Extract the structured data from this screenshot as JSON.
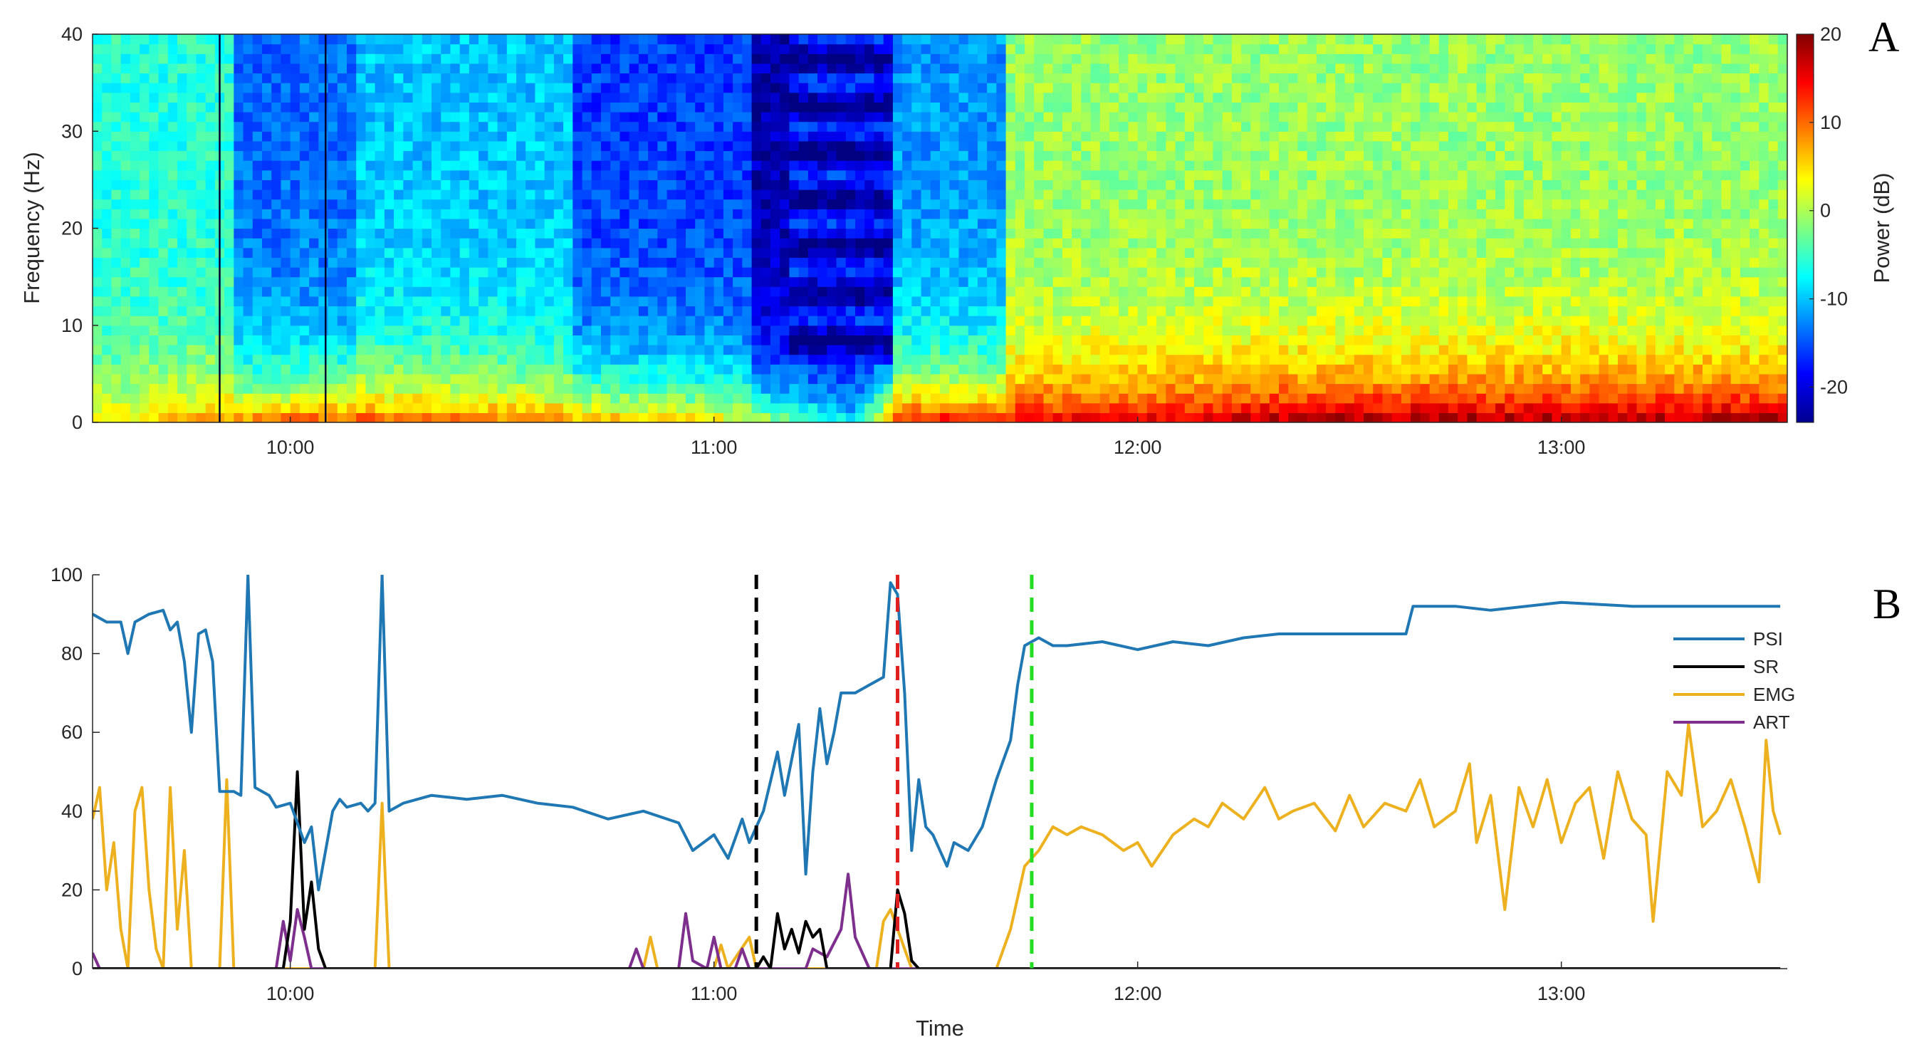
{
  "figure": {
    "panel_a_label": "A",
    "panel_b_label": "B",
    "x_tick_labels": [
      "10:00",
      "11:00",
      "12:00",
      "13:00"
    ]
  },
  "chart_data": [
    {
      "type": "heatmap",
      "panel": "A",
      "ylabel": "Frequency (Hz)",
      "ylim": [
        0,
        40
      ],
      "y_ticks": [
        0,
        10,
        20,
        30,
        40
      ],
      "xlim": [
        "09:32",
        "13:32"
      ],
      "x_ticks": [
        "10:00",
        "11:00",
        "12:00",
        "13:00"
      ],
      "colorbar": {
        "label": "Power (dB)",
        "range": [
          -24,
          20
        ],
        "ticks": [
          -20,
          -10,
          0,
          10,
          20
        ],
        "colormap": "jet",
        "colors": [
          "#00008f",
          "#0000ff",
          "#00ffff",
          "#ffff00",
          "#ff0000",
          "#800000"
        ]
      },
      "description_of_values": {
        "low_freq_0_5Hz_dB": [
          {
            "t": "09:35",
            "v": 4
          },
          {
            "t": "09:50",
            "v": 8
          },
          {
            "t": "10:05",
            "v": 12
          },
          {
            "t": "10:30",
            "v": 10
          },
          {
            "t": "11:00",
            "v": 5
          },
          {
            "t": "11:20",
            "v": -8
          },
          {
            "t": "11:26",
            "v": 14
          },
          {
            "t": "12:00",
            "v": 16
          },
          {
            "t": "12:25",
            "v": 19
          },
          {
            "t": "13:00",
            "v": 19
          },
          {
            "t": "13:30",
            "v": 19
          }
        ]
      },
      "vertical_lines": [
        "09:50",
        "10:05"
      ]
    },
    {
      "type": "line",
      "panel": "B",
      "xlabel": "Time",
      "ylabel": "",
      "ylim": [
        0,
        100
      ],
      "y_ticks": [
        0,
        20,
        40,
        60,
        80,
        100
      ],
      "xlim": [
        "09:32",
        "13:32"
      ],
      "x_ticks": [
        "10:00",
        "11:00",
        "12:00",
        "13:00"
      ],
      "legend": {
        "placement": "right",
        "entries": [
          "PSI",
          "SR",
          "EMG",
          "ART"
        ]
      },
      "event_markers": [
        {
          "time": "11:06",
          "color": "#000000",
          "style": "dashed"
        },
        {
          "time": "11:26",
          "color": "#e02020",
          "style": "dashed"
        },
        {
          "time": "11:45",
          "color": "#22dd22",
          "style": "dashed"
        }
      ],
      "series": [
        {
          "name": "PSI",
          "color": "#1f77b4",
          "points": [
            [
              "09:32",
              90
            ],
            [
              "09:34",
              88
            ],
            [
              "09:36",
              88
            ],
            [
              "09:37",
              80
            ],
            [
              "09:38",
              88
            ],
            [
              "09:40",
              90
            ],
            [
              "09:42",
              91
            ],
            [
              "09:43",
              86
            ],
            [
              "09:44",
              88
            ],
            [
              "09:45",
              78
            ],
            [
              "09:46",
              60
            ],
            [
              "09:47",
              85
            ],
            [
              "09:48",
              86
            ],
            [
              "09:49",
              78
            ],
            [
              "09:50",
              45
            ],
            [
              "09:52",
              45
            ],
            [
              "09:53",
              44
            ],
            [
              "09:54",
              100
            ],
            [
              "09:55",
              46
            ],
            [
              "09:57",
              44
            ],
            [
              "09:58",
              41
            ],
            [
              "10:00",
              42
            ],
            [
              "10:02",
              32
            ],
            [
              "10:03",
              36
            ],
            [
              "10:04",
              20
            ],
            [
              "10:05",
              30
            ],
            [
              "10:06",
              40
            ],
            [
              "10:07",
              43
            ],
            [
              "10:08",
              41
            ],
            [
              "10:10",
              42
            ],
            [
              "10:11",
              40
            ],
            [
              "10:12",
              42
            ],
            [
              "10:13",
              100
            ],
            [
              "10:14",
              40
            ],
            [
              "10:16",
              42
            ],
            [
              "10:20",
              44
            ],
            [
              "10:25",
              43
            ],
            [
              "10:30",
              44
            ],
            [
              "10:35",
              42
            ],
            [
              "10:40",
              41
            ],
            [
              "10:45",
              38
            ],
            [
              "10:50",
              40
            ],
            [
              "10:55",
              37
            ],
            [
              "10:57",
              30
            ],
            [
              "11:00",
              34
            ],
            [
              "11:02",
              28
            ],
            [
              "11:04",
              38
            ],
            [
              "11:05",
              32
            ],
            [
              "11:07",
              40
            ],
            [
              "11:09",
              55
            ],
            [
              "11:10",
              44
            ],
            [
              "11:12",
              62
            ],
            [
              "11:13",
              24
            ],
            [
              "11:14",
              50
            ],
            [
              "11:15",
              66
            ],
            [
              "11:16",
              52
            ],
            [
              "11:17",
              60
            ],
            [
              "11:18",
              70
            ],
            [
              "11:20",
              70
            ],
            [
              "11:22",
              72
            ],
            [
              "11:24",
              74
            ],
            [
              "11:25",
              98
            ],
            [
              "11:26",
              95
            ],
            [
              "11:27",
              70
            ],
            [
              "11:28",
              30
            ],
            [
              "11:29",
              48
            ],
            [
              "11:30",
              36
            ],
            [
              "11:31",
              34
            ],
            [
              "11:32",
              30
            ],
            [
              "11:33",
              26
            ],
            [
              "11:34",
              32
            ],
            [
              "11:36",
              30
            ],
            [
              "11:38",
              36
            ],
            [
              "11:40",
              48
            ],
            [
              "11:42",
              58
            ],
            [
              "11:43",
              72
            ],
            [
              "11:44",
              82
            ],
            [
              "11:46",
              84
            ],
            [
              "11:48",
              82
            ],
            [
              "11:50",
              82
            ],
            [
              "11:55",
              83
            ],
            [
              "12:00",
              81
            ],
            [
              "12:05",
              83
            ],
            [
              "12:10",
              82
            ],
            [
              "12:15",
              84
            ],
            [
              "12:20",
              85
            ],
            [
              "12:25",
              85
            ],
            [
              "12:30",
              85
            ],
            [
              "12:35",
              85
            ],
            [
              "12:38",
              85
            ],
            [
              "12:39",
              92
            ],
            [
              "12:45",
              92
            ],
            [
              "12:50",
              91
            ],
            [
              "13:00",
              93
            ],
            [
              "13:10",
              92
            ],
            [
              "13:20",
              92
            ],
            [
              "13:31",
              92
            ]
          ]
        },
        {
          "name": "SR",
          "color": "#000000",
          "points": [
            [
              "09:32",
              0
            ],
            [
              "09:59",
              0
            ],
            [
              "10:00",
              12
            ],
            [
              "10:01",
              50
            ],
            [
              "10:02",
              10
            ],
            [
              "10:03",
              22
            ],
            [
              "10:04",
              5
            ],
            [
              "10:05",
              0
            ],
            [
              "11:06",
              0
            ],
            [
              "11:07",
              3
            ],
            [
              "11:08",
              0
            ],
            [
              "11:09",
              14
            ],
            [
              "11:10",
              5
            ],
            [
              "11:11",
              10
            ],
            [
              "11:12",
              4
            ],
            [
              "11:13",
              12
            ],
            [
              "11:14",
              8
            ],
            [
              "11:15",
              10
            ],
            [
              "11:16",
              0
            ],
            [
              "11:25",
              0
            ],
            [
              "11:26",
              20
            ],
            [
              "11:27",
              14
            ],
            [
              "11:28",
              2
            ],
            [
              "11:29",
              0
            ],
            [
              "13:31",
              0
            ]
          ]
        },
        {
          "name": "EMG",
          "color": "#edb120",
          "points": [
            [
              "09:32",
              38
            ],
            [
              "09:33",
              46
            ],
            [
              "09:34",
              20
            ],
            [
              "09:35",
              32
            ],
            [
              "09:36",
              10
            ],
            [
              "09:37",
              0
            ],
            [
              "09:38",
              40
            ],
            [
              "09:39",
              46
            ],
            [
              "09:40",
              20
            ],
            [
              "09:41",
              5
            ],
            [
              "09:42",
              0
            ],
            [
              "09:43",
              46
            ],
            [
              "09:44",
              10
            ],
            [
              "09:45",
              30
            ],
            [
              "09:46",
              0
            ],
            [
              "09:50",
              0
            ],
            [
              "09:51",
              48
            ],
            [
              "09:52",
              0
            ],
            [
              "10:12",
              0
            ],
            [
              "10:13",
              42
            ],
            [
              "10:14",
              0
            ],
            [
              "10:50",
              0
            ],
            [
              "10:51",
              8
            ],
            [
              "10:52",
              0
            ],
            [
              "11:00",
              0
            ],
            [
              "11:01",
              6
            ],
            [
              "11:02",
              0
            ],
            [
              "11:05",
              8
            ],
            [
              "11:06",
              0
            ],
            [
              "11:23",
              0
            ],
            [
              "11:24",
              12
            ],
            [
              "11:25",
              15
            ],
            [
              "11:26",
              10
            ],
            [
              "11:28",
              0
            ],
            [
              "11:40",
              0
            ],
            [
              "11:42",
              10
            ],
            [
              "11:44",
              26
            ],
            [
              "11:46",
              30
            ],
            [
              "11:48",
              36
            ],
            [
              "11:50",
              34
            ],
            [
              "11:52",
              36
            ],
            [
              "11:55",
              34
            ],
            [
              "11:58",
              30
            ],
            [
              "12:00",
              32
            ],
            [
              "12:02",
              26
            ],
            [
              "12:05",
              34
            ],
            [
              "12:08",
              38
            ],
            [
              "12:10",
              36
            ],
            [
              "12:12",
              42
            ],
            [
              "12:15",
              38
            ],
            [
              "12:18",
              46
            ],
            [
              "12:20",
              38
            ],
            [
              "12:22",
              40
            ],
            [
              "12:25",
              42
            ],
            [
              "12:28",
              35
            ],
            [
              "12:30",
              44
            ],
            [
              "12:32",
              36
            ],
            [
              "12:35",
              42
            ],
            [
              "12:38",
              40
            ],
            [
              "12:40",
              48
            ],
            [
              "12:42",
              36
            ],
            [
              "12:45",
              40
            ],
            [
              "12:47",
              52
            ],
            [
              "12:48",
              32
            ],
            [
              "12:50",
              44
            ],
            [
              "12:52",
              15
            ],
            [
              "12:54",
              46
            ],
            [
              "12:56",
              36
            ],
            [
              "12:58",
              48
            ],
            [
              "13:00",
              32
            ],
            [
              "13:02",
              42
            ],
            [
              "13:04",
              46
            ],
            [
              "13:06",
              28
            ],
            [
              "13:08",
              50
            ],
            [
              "13:10",
              38
            ],
            [
              "13:12",
              34
            ],
            [
              "13:13",
              12
            ],
            [
              "13:15",
              50
            ],
            [
              "13:17",
              44
            ],
            [
              "13:18",
              62
            ],
            [
              "13:20",
              36
            ],
            [
              "13:22",
              40
            ],
            [
              "13:24",
              48
            ],
            [
              "13:26",
              36
            ],
            [
              "13:28",
              22
            ],
            [
              "13:29",
              58
            ],
            [
              "13:30",
              40
            ],
            [
              "13:31",
              34
            ]
          ]
        },
        {
          "name": "ART",
          "color": "#7e2f8e",
          "points": [
            [
              "09:32",
              4
            ],
            [
              "09:33",
              0
            ],
            [
              "09:58",
              0
            ],
            [
              "09:59",
              12
            ],
            [
              "10:00",
              2
            ],
            [
              "10:01",
              15
            ],
            [
              "10:02",
              8
            ],
            [
              "10:03",
              0
            ],
            [
              "10:48",
              0
            ],
            [
              "10:49",
              5
            ],
            [
              "10:50",
              0
            ],
            [
              "10:55",
              0
            ],
            [
              "10:56",
              14
            ],
            [
              "10:57",
              2
            ],
            [
              "10:59",
              0
            ],
            [
              "11:00",
              8
            ],
            [
              "11:01",
              0
            ],
            [
              "11:03",
              0
            ],
            [
              "11:04",
              5
            ],
            [
              "11:05",
              0
            ],
            [
              "11:13",
              0
            ],
            [
              "11:14",
              5
            ],
            [
              "11:16",
              3
            ],
            [
              "11:18",
              10
            ],
            [
              "11:19",
              24
            ],
            [
              "11:20",
              8
            ],
            [
              "11:22",
              0
            ],
            [
              "13:31",
              0
            ]
          ]
        }
      ]
    }
  ]
}
